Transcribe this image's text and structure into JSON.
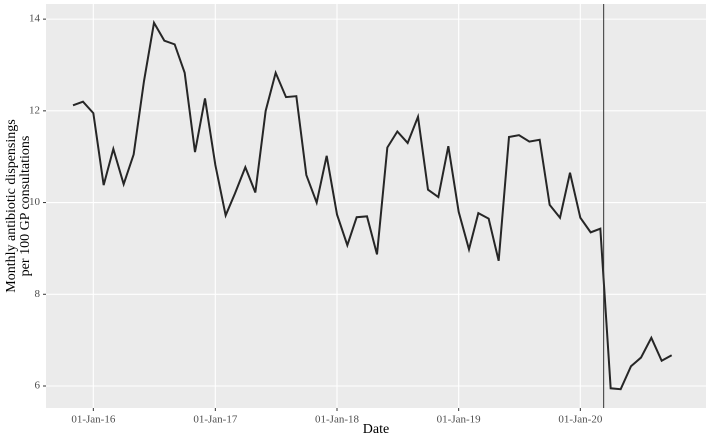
{
  "chart_data": {
    "type": "line",
    "xlabel": "Date",
    "ylabel": [
      "Monthly antibiotic dispensings",
      "per 100 GP consultations"
    ],
    "x": [
      "2015-11-01",
      "2015-12-01",
      "2016-01-01",
      "2016-02-01",
      "2016-03-01",
      "2016-04-01",
      "2016-05-01",
      "2016-06-01",
      "2016-07-01",
      "2016-08-01",
      "2016-09-01",
      "2016-10-01",
      "2016-11-01",
      "2016-12-01",
      "2017-01-01",
      "2017-02-01",
      "2017-03-01",
      "2017-04-01",
      "2017-05-01",
      "2017-06-01",
      "2017-07-01",
      "2017-08-01",
      "2017-09-01",
      "2017-10-01",
      "2017-11-01",
      "2017-12-01",
      "2018-01-01",
      "2018-02-01",
      "2018-03-01",
      "2018-04-01",
      "2018-05-01",
      "2018-06-01",
      "2018-07-01",
      "2018-08-01",
      "2018-09-01",
      "2018-10-01",
      "2018-11-01",
      "2018-12-01",
      "2019-01-01",
      "2019-02-01",
      "2019-03-01",
      "2019-04-01",
      "2019-05-01",
      "2019-06-01",
      "2019-07-01",
      "2019-08-01",
      "2019-09-01",
      "2019-10-01",
      "2019-11-01",
      "2019-12-01",
      "2020-01-01",
      "2020-02-01",
      "2020-03-01",
      "2020-04-01",
      "2020-05-01",
      "2020-06-01",
      "2020-07-01",
      "2020-08-01",
      "2020-09-01",
      "2020-10-01"
    ],
    "values": [
      12.12,
      12.2,
      11.95,
      10.38,
      11.17,
      10.4,
      11.05,
      12.65,
      13.92,
      13.53,
      13.45,
      12.83,
      11.1,
      12.27,
      10.82,
      9.72,
      10.2,
      10.77,
      10.22,
      12.0,
      12.83,
      12.3,
      12.32,
      10.6,
      10.0,
      11.02,
      9.74,
      9.07,
      9.68,
      9.7,
      8.87,
      11.2,
      11.55,
      11.3,
      11.87,
      10.28,
      10.12,
      11.23,
      9.8,
      8.98,
      9.77,
      9.65,
      8.73,
      11.43,
      11.47,
      11.33,
      11.37,
      9.95,
      9.67,
      10.65,
      9.67,
      9.35,
      9.43,
      5.95,
      5.93,
      6.43,
      6.62,
      7.05,
      6.55,
      6.67
    ],
    "color": "#262626",
    "vline": "2020-03-11",
    "xlim": [
      "2015-08-12",
      "2021-01-12"
    ],
    "xticks": [
      {
        "value": "2016-01-01",
        "label": "01-Jan-16"
      },
      {
        "value": "2017-01-01",
        "label": "01-Jan-17"
      },
      {
        "value": "2018-01-01",
        "label": "01-Jan-18"
      },
      {
        "value": "2019-01-01",
        "label": "01-Jan-19"
      },
      {
        "value": "2020-01-01",
        "label": "01-Jan-20"
      }
    ],
    "ylim": [
      5.52,
      14.33
    ],
    "yticks": [
      6,
      8,
      10,
      12,
      14
    ],
    "grid": true
  }
}
